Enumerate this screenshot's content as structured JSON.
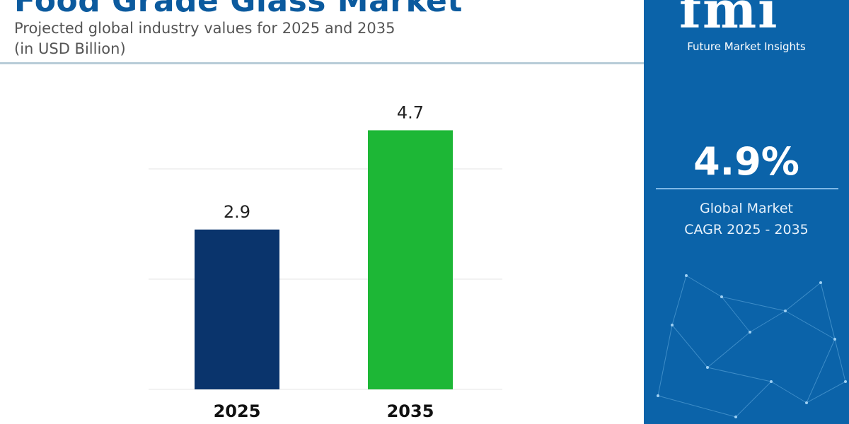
{
  "header": {
    "title": "Food Grade Glass Market",
    "subtitle_line1": "Projected global industry values for 2025 and 2035",
    "subtitle_line2": "(in USD Billion)"
  },
  "panel": {
    "logo_text": "fmi",
    "brand": "Future Market Insights",
    "cagr": "4.9%",
    "label_line1": "Global Market",
    "label_line2": "CAGR 2025 - 2035",
    "background": "#0b63a9"
  },
  "chart_data": {
    "type": "bar",
    "title": "Food Grade Glass Market",
    "categories": [
      "2025",
      "2035"
    ],
    "values": [
      2.9,
      4.7
    ],
    "data_labels": [
      "2.9",
      "4.7"
    ],
    "colors": [
      "#0a346c",
      "#1db736"
    ],
    "ylim": [
      0,
      5
    ],
    "gridlines": [
      2,
      4
    ],
    "grid": true,
    "xlabel": "",
    "ylabel": ""
  }
}
